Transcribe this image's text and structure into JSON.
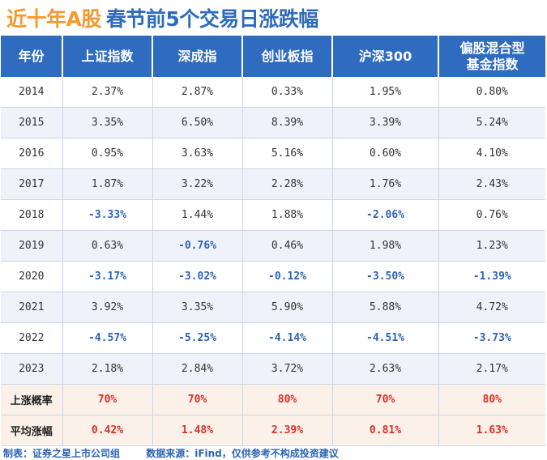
{
  "title": {
    "part1": "近十年A股",
    "part2": "春节前5个交易日涨跌幅"
  },
  "headers": [
    "年份",
    "上证指数",
    "深成指",
    "创业板指",
    "沪深300",
    "偏股混合型基金指数"
  ],
  "rows": [
    {
      "year": "2014",
      "values": [
        "2.37%",
        "2.87%",
        "0.33%",
        "1.95%",
        "0.80%"
      ]
    },
    {
      "year": "2015",
      "values": [
        "3.35%",
        "6.50%",
        "8.39%",
        "3.39%",
        "5.24%"
      ]
    },
    {
      "year": "2016",
      "values": [
        "0.95%",
        "3.63%",
        "5.16%",
        "0.60%",
        "4.10%"
      ]
    },
    {
      "year": "2017",
      "values": [
        "1.87%",
        "3.22%",
        "2.28%",
        "1.76%",
        "2.43%"
      ]
    },
    {
      "year": "2018",
      "values": [
        "-3.33%",
        "1.44%",
        "1.88%",
        "-2.06%",
        "0.76%"
      ]
    },
    {
      "year": "2019",
      "values": [
        "0.63%",
        "-0.76%",
        "0.46%",
        "1.98%",
        "1.23%"
      ]
    },
    {
      "year": "2020",
      "values": [
        "-3.17%",
        "-3.02%",
        "-0.12%",
        "-3.50%",
        "-1.39%"
      ]
    },
    {
      "year": "2021",
      "values": [
        "3.92%",
        "3.35%",
        "5.90%",
        "5.88%",
        "4.72%"
      ]
    },
    {
      "year": "2022",
      "values": [
        "-4.57%",
        "-5.25%",
        "-4.14%",
        "-4.51%",
        "-3.73%"
      ]
    },
    {
      "year": "2023",
      "values": [
        "2.18%",
        "2.84%",
        "3.72%",
        "2.63%",
        "2.17%"
      ]
    }
  ],
  "summary": [
    {
      "label": "上涨概率",
      "values": [
        "70%",
        "70%",
        "80%",
        "70%",
        "80%"
      ]
    },
    {
      "label": "平均涨幅",
      "values": [
        "0.42%",
        "1.48%",
        "2.39%",
        "0.81%",
        "1.63%"
      ]
    }
  ],
  "footer": {
    "made_by": "制表：证券之星上市公司组",
    "source": "数据来源：iFind，仅供参考不构成投资建议"
  },
  "watermark": "证券之星",
  "colors": {
    "header_bg": "#2f6cbf",
    "title_orange": "#f39a2d",
    "title_blue": "#2e6bb8",
    "negative": "#2d64b3",
    "summary": "#d8312b"
  },
  "chart_data": {
    "type": "table",
    "title": "近十年A股 春节前5个交易日涨跌幅",
    "columns": [
      "年份",
      "上证指数",
      "深成指",
      "创业板指",
      "沪深300",
      "偏股混合型基金指数"
    ],
    "series": [
      {
        "name": "上证指数",
        "values": [
          2.37,
          3.35,
          0.95,
          1.87,
          -3.33,
          0.63,
          -3.17,
          3.92,
          -4.57,
          2.18
        ]
      },
      {
        "name": "深成指",
        "values": [
          2.87,
          6.5,
          3.63,
          3.22,
          1.44,
          -0.76,
          -3.02,
          3.35,
          -5.25,
          2.84
        ]
      },
      {
        "name": "创业板指",
        "values": [
          0.33,
          8.39,
          5.16,
          2.28,
          1.88,
          0.46,
          -0.12,
          5.9,
          -4.14,
          3.72
        ]
      },
      {
        "name": "沪深300",
        "values": [
          1.95,
          3.39,
          0.6,
          1.76,
          -2.06,
          1.98,
          -3.5,
          5.88,
          -4.51,
          2.63
        ]
      },
      {
        "name": "偏股混合型基金指数",
        "values": [
          0.8,
          5.24,
          4.1,
          2.43,
          0.76,
          1.23,
          -1.39,
          4.72,
          -3.73,
          2.17
        ]
      }
    ],
    "x": [
      "2014",
      "2015",
      "2016",
      "2017",
      "2018",
      "2019",
      "2020",
      "2021",
      "2022",
      "2023"
    ],
    "up_probability": [
      70,
      70,
      80,
      70,
      80
    ],
    "average_change": [
      0.42,
      1.48,
      2.39,
      0.81,
      1.63
    ]
  }
}
